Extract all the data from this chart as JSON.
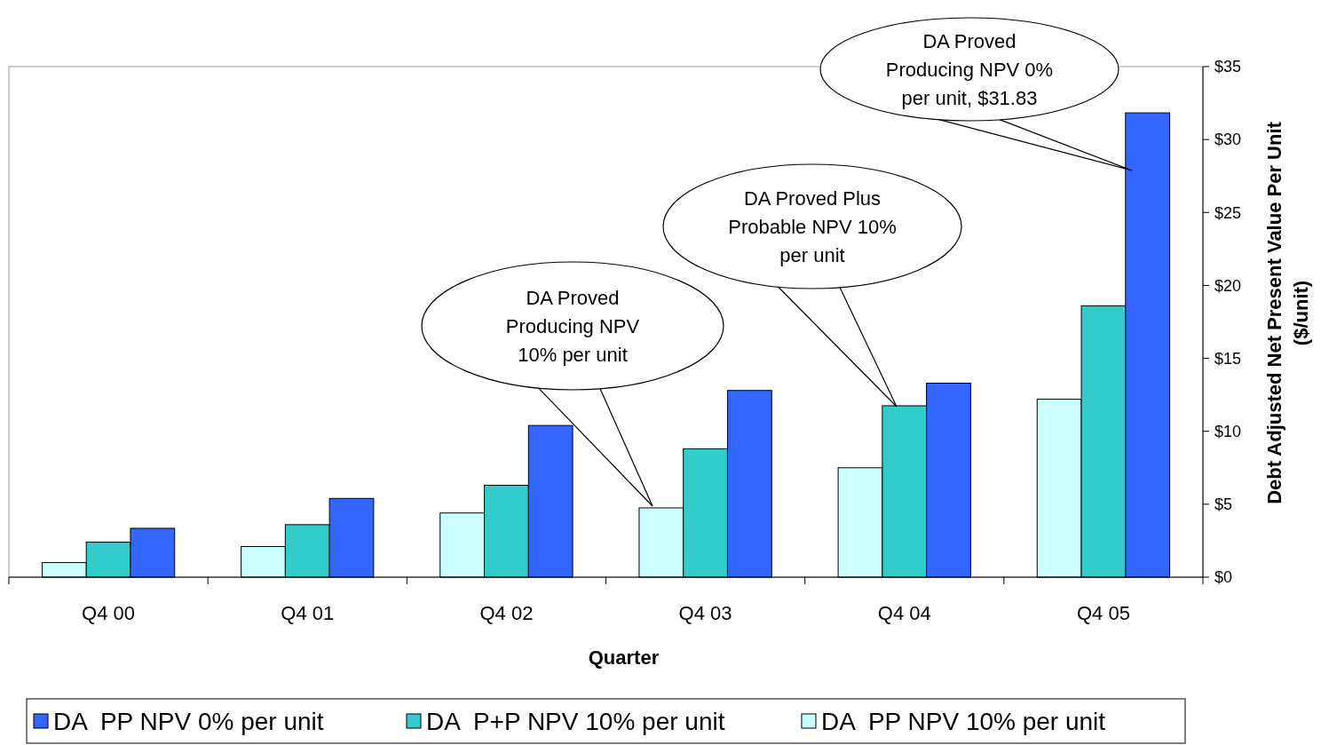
{
  "chart_data": {
    "type": "bar",
    "xlabel": "Quarter",
    "ylabel": "Debt Adjusted Net Present Value Per Unit ($/unit)",
    "categories": [
      "Q4 00",
      "Q4 01",
      "Q4 02",
      "Q4 03",
      "Q4 04",
      "Q4 05"
    ],
    "series": [
      {
        "name": "DA  PP NPV 10% per unit",
        "color": "#ccffff",
        "values": [
          1.0,
          2.1,
          4.4,
          4.75,
          7.5,
          12.2
        ]
      },
      {
        "name": "DA  P+P NPV 10% per unit",
        "color": "#33cccc",
        "values": [
          2.4,
          3.6,
          6.3,
          8.8,
          11.75,
          18.6
        ]
      },
      {
        "name": "DA  PP NPV 0% per unit",
        "color": "#3366ff",
        "values": [
          3.35,
          5.4,
          10.4,
          12.8,
          13.3,
          31.83
        ]
      }
    ],
    "ylim": [
      0,
      35
    ],
    "yticks": [
      {
        "value": 0,
        "label": "$0"
      },
      {
        "value": 5,
        "label": "$5"
      },
      {
        "value": 10,
        "label": "$10"
      },
      {
        "value": 15,
        "label": "$15"
      },
      {
        "value": 20,
        "label": "$20"
      },
      {
        "value": 25,
        "label": "$25"
      },
      {
        "value": 30,
        "label": "$30"
      },
      {
        "value": 35,
        "label": "$35"
      }
    ],
    "annotations": [
      "DA Proved Producing NPV 0% per unit, $31.83",
      "DA Proved Plus Probable NPV 10% per unit",
      "DA Proved Producing NPV 10% per unit"
    ],
    "legend": "bottom"
  }
}
